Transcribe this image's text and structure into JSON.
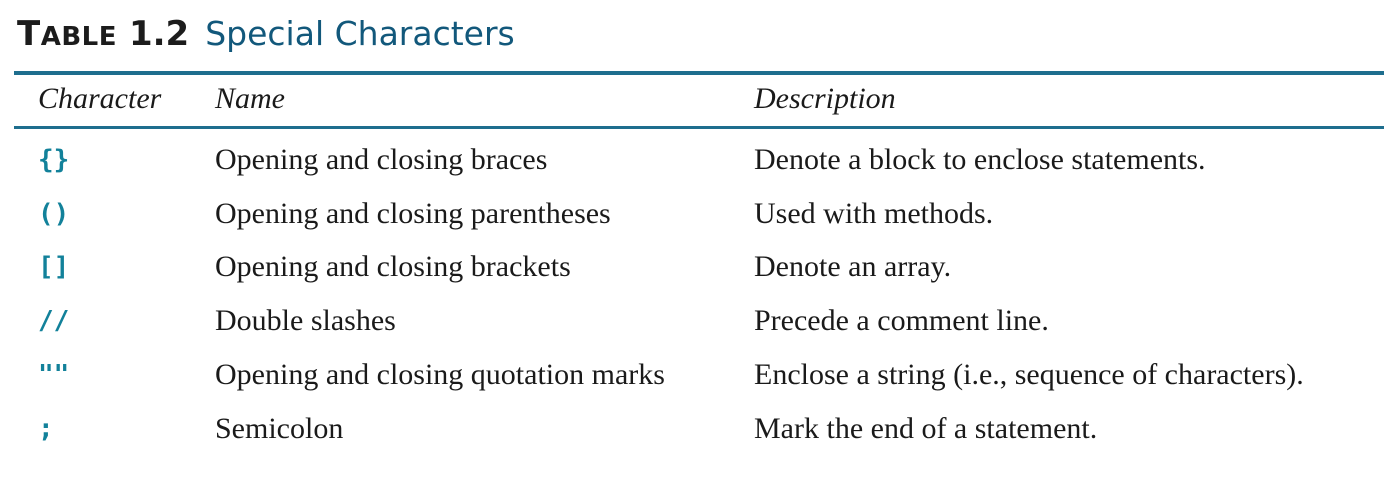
{
  "caption": {
    "label_first": "T",
    "label_rest": "ABLE",
    "number": "1.2",
    "title": "Special Characters"
  },
  "colors": {
    "rule": "#1e6e8e",
    "title": "#12587b",
    "code": "#12819a",
    "text": "#1a1a1a"
  },
  "table": {
    "headers": [
      "Character",
      "Name",
      "Description"
    ],
    "rows": [
      {
        "character": "{}",
        "name": "Opening and closing braces",
        "description": "Denote a block to enclose statements."
      },
      {
        "character": "()",
        "name": "Opening and closing parentheses",
        "description": "Used with methods."
      },
      {
        "character": "[]",
        "name": "Opening and closing brackets",
        "description": "Denote an array."
      },
      {
        "character": "//",
        "name": "Double slashes",
        "description": "Precede a comment line."
      },
      {
        "character": "\"\"",
        "name": "Opening and closing quotation marks",
        "description": "Enclose a string (i.e., sequence of characters)."
      },
      {
        "character": ";",
        "name": "Semicolon",
        "description": "Mark the end of a statement."
      }
    ]
  }
}
